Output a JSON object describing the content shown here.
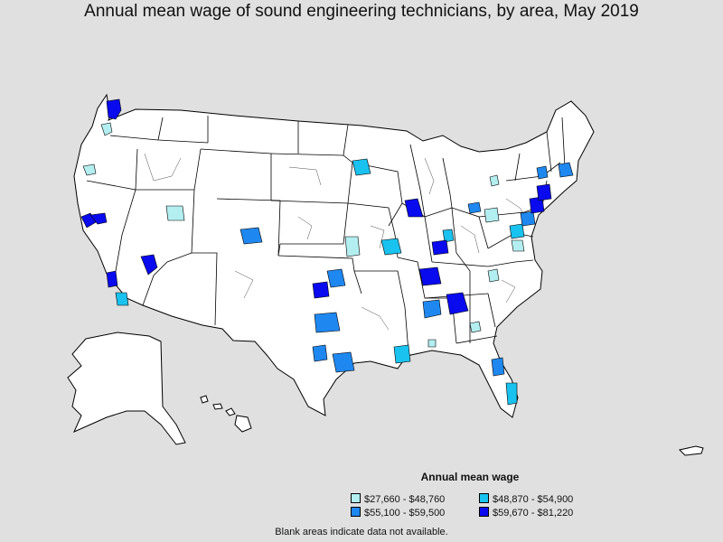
{
  "title": "Annual mean wage of sound engineering technicians, by area, May 2019",
  "legend": {
    "title": "Annual mean wage",
    "items": [
      {
        "label": "$27,660 - $48,760",
        "color": "#b3eef0"
      },
      {
        "label": "$48,870 - $54,900",
        "color": "#19c2ef"
      },
      {
        "label": "$55,100 - $59,500",
        "color": "#1e88f0"
      },
      {
        "label": "$59,670 - $81,220",
        "color": "#0a0aef"
      }
    ]
  },
  "footnote": "Blank areas indicate data not available.",
  "colors": {
    "background": "#e0e0e0",
    "land": "#ffffff",
    "border": "#000000"
  }
}
